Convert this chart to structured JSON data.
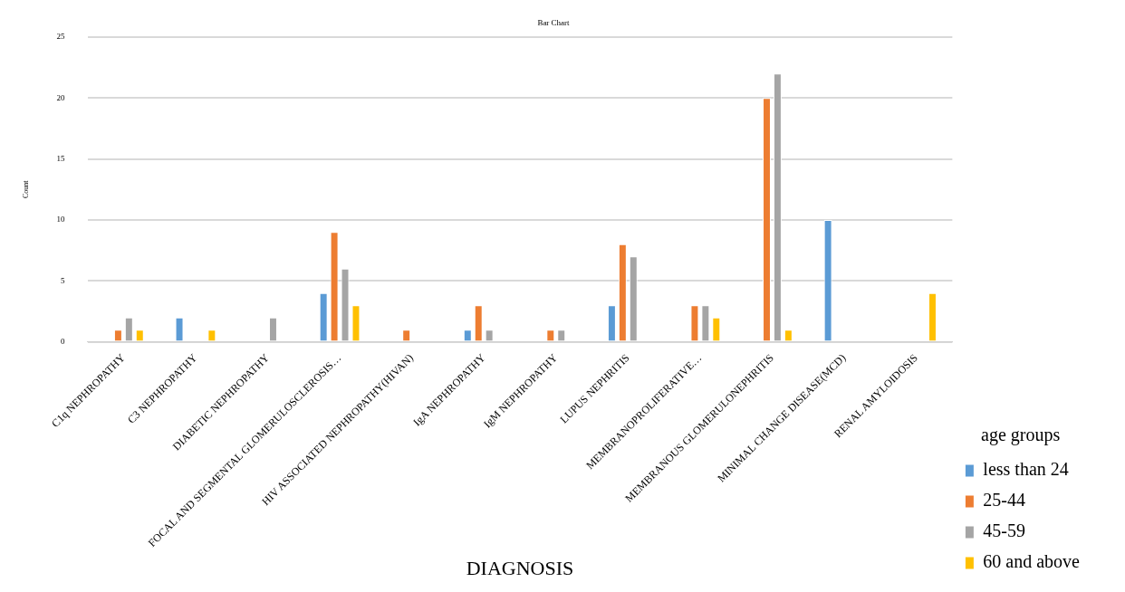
{
  "chart_data": {
    "type": "bar",
    "title": "Bar Chart",
    "xlabel": "DIAGNOSIS",
    "ylabel": "Count",
    "legend_title": "age groups",
    "legend": "bottom right",
    "grid": "y",
    "categories": [
      "C1q NEPHROPATHY",
      "C3 NEPHROPATHY",
      "DIABETIC NEPHROPATHY",
      "FOCAL AND SEGMENTAL GLOMERULOSCLEROSIS…",
      "HIV ASSOCIATED NEPHROPATHY(HIVAN)",
      "IgA NEPHROPATHY",
      "IgM NEPHROPATHY",
      "LUPUS NEPHRITIS",
      "MEMBRANOPROLIFERATIVE…",
      "MEMBRANOUS GLOMERULONEPHRITIS",
      "MINIMAL CHANGE DISEASE(MCD)",
      "RENAL AMYLOIDOSIS"
    ],
    "ylim": [
      0,
      25
    ],
    "yticks": [
      0,
      5,
      10,
      15,
      20,
      25
    ],
    "series": [
      {
        "name": "less than 24",
        "color": "#5b9bd5",
        "values": [
          null,
          2,
          null,
          4,
          null,
          1,
          null,
          3,
          null,
          null,
          10,
          null
        ]
      },
      {
        "name": "25-44",
        "color": "#ed7d31",
        "values": [
          1,
          null,
          null,
          9,
          1,
          3,
          1,
          8,
          3,
          20,
          null,
          null
        ]
      },
      {
        "name": "45-59",
        "color": "#a5a5a5",
        "values": [
          2,
          null,
          2,
          6,
          null,
          1,
          1,
          7,
          3,
          22,
          null,
          null
        ]
      },
      {
        "name": "60 and above",
        "color": "#ffc000",
        "values": [
          1,
          1,
          null,
          3,
          null,
          null,
          null,
          null,
          2,
          1,
          null,
          4
        ]
      }
    ]
  }
}
